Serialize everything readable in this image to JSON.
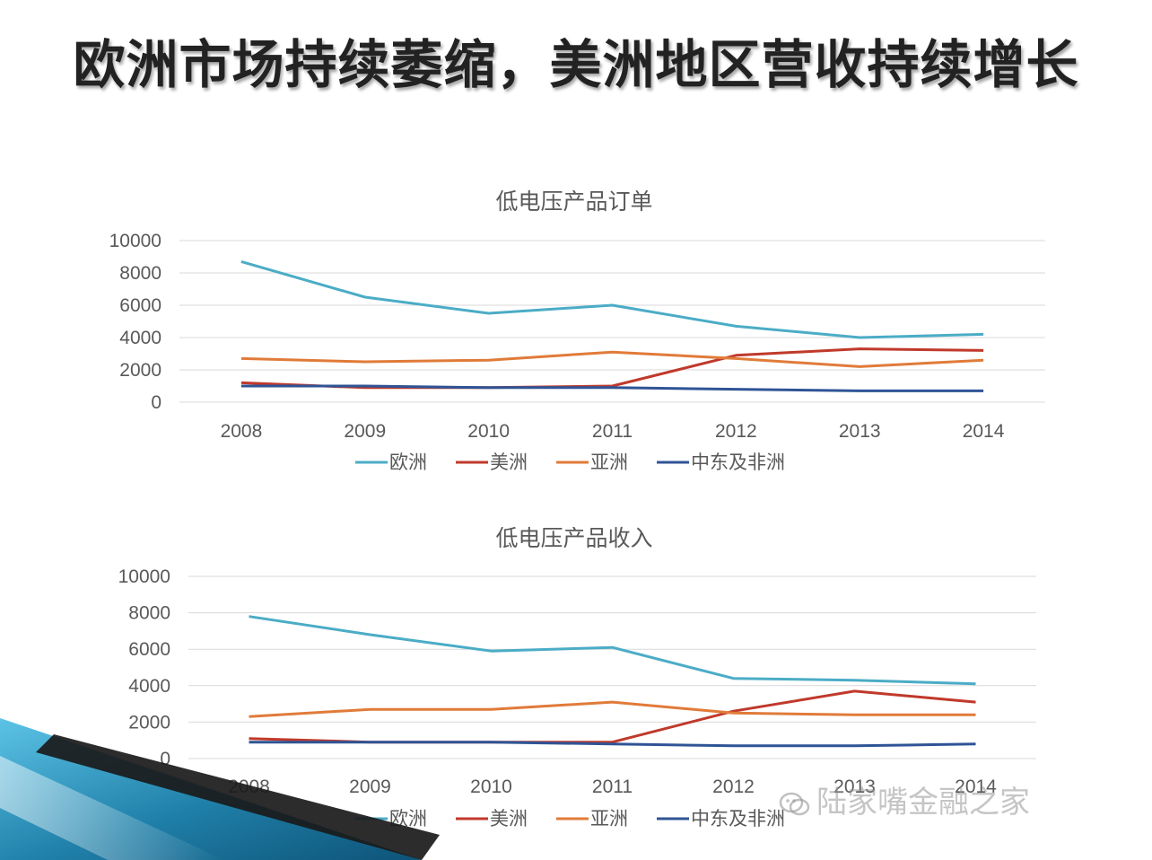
{
  "slide": {
    "title": "欧洲市场持续萎缩，美洲地区营收持续增长",
    "watermark": "陆家嘴金融之家",
    "watermark_icon": "wechat-icon"
  },
  "colors": {
    "欧洲": "#4bacc6",
    "美洲": "#c0392b",
    "亚洲": "#e07b39",
    "中东及非洲": "#2f5496",
    "decor_blue": "#1f7fa8",
    "decor_dark": "#1a1a1a"
  },
  "chart_data": [
    {
      "type": "line",
      "title": "低电压产品订单",
      "categories": [
        "2008",
        "2009",
        "2010",
        "2011",
        "2012",
        "2013",
        "2014"
      ],
      "ylim": [
        0,
        10000
      ],
      "yticks": [
        "10000",
        "8000",
        "6000",
        "4000",
        "2000",
        "0"
      ],
      "grid": true,
      "legend": "bottom",
      "series": [
        {
          "name": "欧洲",
          "values": [
            8700,
            6500,
            5500,
            6000,
            4700,
            4000,
            4200
          ]
        },
        {
          "name": "美洲",
          "values": [
            1200,
            900,
            900,
            1000,
            2900,
            3300,
            3200
          ]
        },
        {
          "name": "亚洲",
          "values": [
            2700,
            2500,
            2600,
            3100,
            2700,
            2200,
            2600
          ]
        },
        {
          "name": "中东及非洲",
          "values": [
            1000,
            1000,
            900,
            900,
            800,
            700,
            700
          ]
        }
      ]
    },
    {
      "type": "line",
      "title": "低电压产品收入",
      "categories": [
        "2008",
        "2009",
        "2010",
        "2011",
        "2012",
        "2013",
        "2014"
      ],
      "ylim": [
        0,
        10000
      ],
      "yticks": [
        "10000",
        "8000",
        "6000",
        "4000",
        "2000",
        "0"
      ],
      "grid": true,
      "legend": "bottom",
      "series": [
        {
          "name": "欧洲",
          "values": [
            7800,
            6800,
            5900,
            6100,
            4400,
            4300,
            4100
          ]
        },
        {
          "name": "美洲",
          "values": [
            1100,
            900,
            900,
            900,
            2600,
            3700,
            3100
          ]
        },
        {
          "name": "亚洲",
          "values": [
            2300,
            2700,
            2700,
            3100,
            2500,
            2400,
            2400
          ]
        },
        {
          "name": "中东及非洲",
          "values": [
            900,
            900,
            900,
            800,
            700,
            700,
            800
          ]
        }
      ]
    }
  ]
}
